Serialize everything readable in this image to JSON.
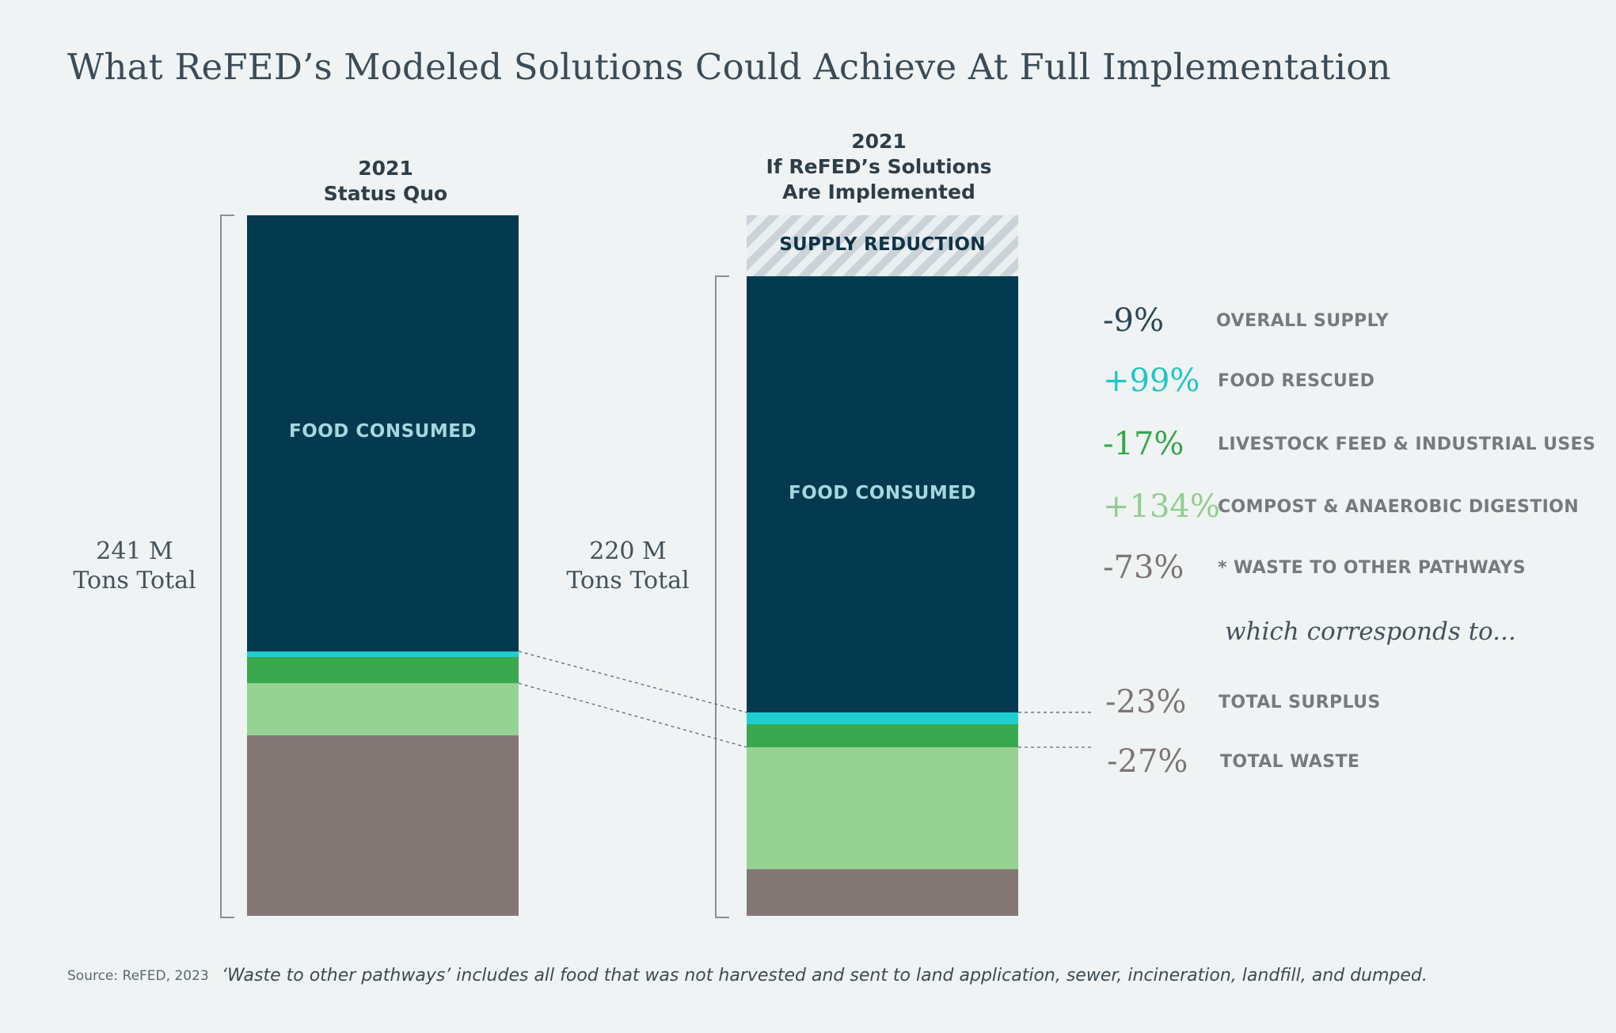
{
  "title": "What ReFED’s Modeled Solutions Could Achieve At Full Implementation",
  "chart_data": {
    "type": "bar",
    "stacked": true,
    "categories": [
      "2021 Status Quo",
      "2021 If ReFED’s Solutions Are Implemented"
    ],
    "columns": [
      {
        "heading": [
          "2021",
          "Status Quo"
        ],
        "total_label": [
          "241 M",
          "Tons Total"
        ],
        "total_tons_m": 241,
        "segments_top_to_bottom": [
          {
            "name": "food_consumed",
            "label": "FOOD CONSUMED",
            "value": 150,
            "color": "#033a50"
          },
          {
            "name": "food_rescued",
            "value": 2,
            "color": "#1fcfcf"
          },
          {
            "name": "livestock_feed_industrial",
            "value": 9,
            "color": "#3aa84f"
          },
          {
            "name": "compost_anaerobic",
            "value": 18,
            "color": "#96d393"
          },
          {
            "name": "waste_other_pathways",
            "value": 62,
            "color": "#847877"
          }
        ]
      },
      {
        "heading": [
          "2021",
          "If ReFED’s Solutions",
          "Are Implemented"
        ],
        "total_label": [
          "220 M",
          "Tons Total"
        ],
        "total_tons_m": 220,
        "supply_reduction": {
          "label": "SUPPLY REDUCTION",
          "value": 21
        },
        "segments_top_to_bottom": [
          {
            "name": "food_consumed",
            "label": "FOOD CONSUMED",
            "value": 150,
            "color": "#033a50"
          },
          {
            "name": "food_rescued",
            "value": 4,
            "color": "#1fcfcf"
          },
          {
            "name": "livestock_feed_industrial",
            "value": 8,
            "color": "#3aa84f"
          },
          {
            "name": "compost_anaerobic",
            "value": 42,
            "color": "#96d393"
          },
          {
            "name": "waste_other_pathways",
            "value": 16,
            "color": "#847877"
          }
        ]
      }
    ]
  },
  "metrics": [
    {
      "pct": "-9%",
      "label": "OVERALL SUPPLY",
      "color": "#2c4453"
    },
    {
      "pct": "+99%",
      "label": "FOOD RESCUED",
      "color": "#1cc6c6"
    },
    {
      "pct": "-17%",
      "label": "LIVESTOCK FEED & INDUSTRIAL USES",
      "color": "#36a64c"
    },
    {
      "pct": "+134%",
      "label": "COMPOST & ANAEROBIC DIGESTION",
      "color": "#8fcf8c"
    },
    {
      "pct": "-73%",
      "label": "* WASTE TO OTHER PATHWAYS",
      "color": "#7d7574"
    }
  ],
  "which_text": "which corresponds to...",
  "summary_metrics": [
    {
      "pct": "-23%",
      "label": "TOTAL SURPLUS",
      "color": "#7d7574"
    },
    {
      "pct": "-27%",
      "label": "TOTAL WASTE",
      "color": "#7d7574"
    }
  ],
  "source": "Source: ReFED, 2023",
  "footnote": "‘Waste to other pathways’ includes all food that was not harvested and sent to land application, sewer, incineration, landfill, and dumped."
}
